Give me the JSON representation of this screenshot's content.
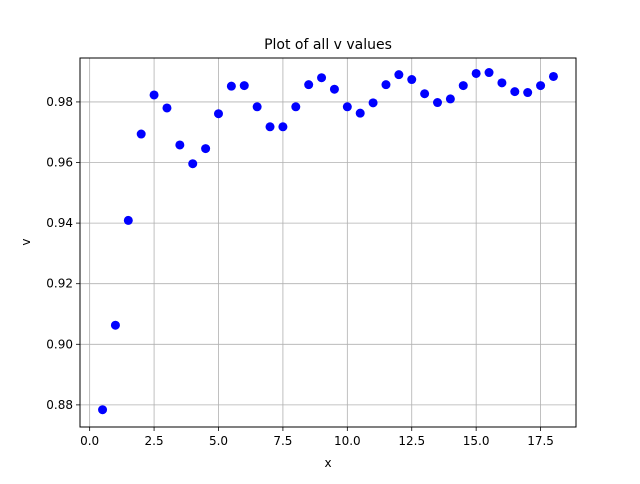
{
  "chart_data": {
    "type": "scatter",
    "title": "Plot of all v values",
    "xlabel": "x",
    "ylabel": "v",
    "xlim": [
      -0.375,
      18.875
    ],
    "ylim": [
      0.8727,
      0.9945
    ],
    "xticks": [
      0.0,
      2.5,
      5.0,
      7.5,
      10.0,
      12.5,
      15.0,
      17.5
    ],
    "xtick_labels": [
      "0.0",
      "2.5",
      "5.0",
      "7.5",
      "10.0",
      "12.5",
      "15.0",
      "17.5"
    ],
    "yticks": [
      0.88,
      0.9,
      0.92,
      0.94,
      0.96,
      0.98
    ],
    "ytick_labels": [
      "0.88",
      "0.90",
      "0.92",
      "0.94",
      "0.96",
      "0.98"
    ],
    "grid": true,
    "marker_color": "#0000ff",
    "x": [
      0.5,
      1.0,
      1.5,
      2.0,
      2.5,
      3.0,
      3.5,
      4.0,
      4.5,
      5.0,
      5.5,
      6.0,
      6.5,
      7.0,
      7.5,
      8.0,
      8.5,
      9.0,
      9.5,
      10.0,
      10.5,
      11.0,
      11.5,
      12.0,
      12.5,
      13.0,
      13.5,
      14.0,
      14.5,
      15.0,
      15.5,
      16.0,
      16.5,
      17.0,
      17.5,
      18.0
    ],
    "y": [
      0.8784,
      0.9063,
      0.9409,
      0.9694,
      0.9823,
      0.978,
      0.9658,
      0.9596,
      0.9646,
      0.9761,
      0.9852,
      0.9854,
      0.9784,
      0.9718,
      0.9718,
      0.9784,
      0.9857,
      0.988,
      0.9842,
      0.9784,
      0.9763,
      0.9797,
      0.9857,
      0.989,
      0.9874,
      0.9827,
      0.9798,
      0.981,
      0.9854,
      0.9894,
      0.9897,
      0.9863,
      0.9834,
      0.9831,
      0.9854,
      0.9884
    ]
  }
}
